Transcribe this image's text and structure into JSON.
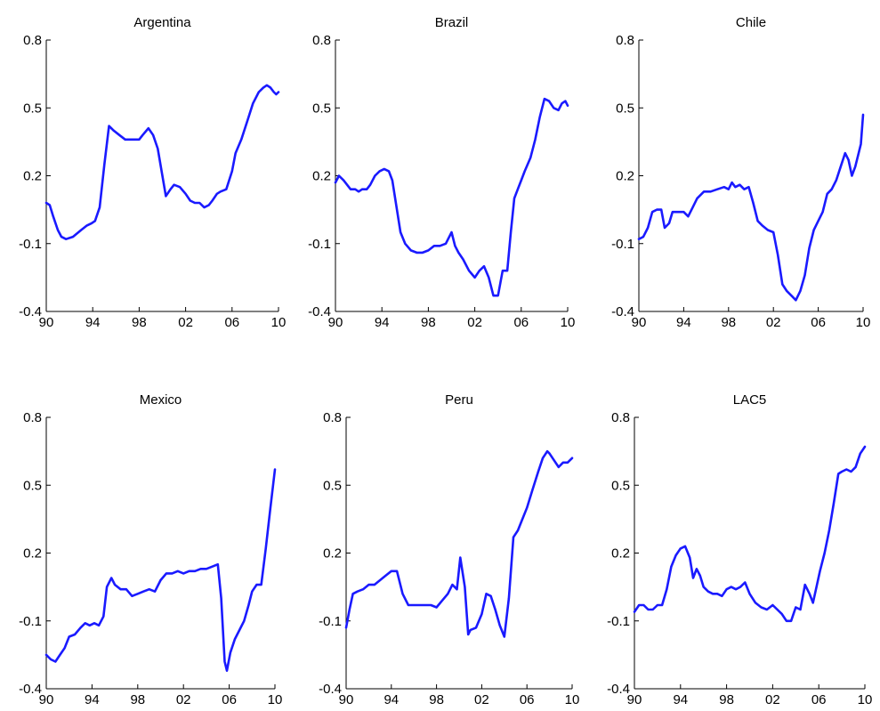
{
  "chart_data": [
    {
      "type": "line",
      "title": "Argentina",
      "xlabel": "",
      "ylabel": "",
      "xlim": [
        1990,
        2010
      ],
      "ylim": [
        -0.4,
        0.8
      ],
      "xticks": [
        1990,
        1994,
        1998,
        2002,
        2006,
        2010
      ],
      "xtick_labels": [
        "90",
        "94",
        "98",
        "02",
        "06",
        "10"
      ],
      "yticks": [
        -0.4,
        -0.1,
        0.2,
        0.5,
        0.8
      ],
      "ytick_labels": [
        "-0.4",
        "-0.1",
        "0.2",
        "0.5",
        "0.8"
      ],
      "series": [
        {
          "color": "#1a1aff",
          "x": [
            1990.0,
            1990.3,
            1990.6,
            1991.0,
            1991.3,
            1991.7,
            1992.3,
            1993.0,
            1993.5,
            1993.9,
            1994.2,
            1994.6,
            1995.0,
            1995.4,
            1995.8,
            1996.3,
            1996.8,
            1997.5,
            1998.0,
            1998.3,
            1998.8,
            1999.2,
            1999.6,
            2000.0,
            2000.3,
            2000.7,
            2001.0,
            2001.5,
            2002.0,
            2002.4,
            2002.8,
            2003.2,
            2003.6,
            2004.0,
            2004.3,
            2004.7,
            2005.0,
            2005.5,
            2006.0,
            2006.3,
            2006.8,
            2007.3,
            2007.8,
            2008.3,
            2008.7,
            2009.0,
            2009.3,
            2009.6,
            2009.8,
            2010.0
          ],
          "y": [
            0.08,
            0.07,
            0.02,
            -0.04,
            -0.07,
            -0.08,
            -0.07,
            -0.04,
            -0.02,
            -0.01,
            0.0,
            0.06,
            0.25,
            0.42,
            0.4,
            0.38,
            0.36,
            0.36,
            0.36,
            0.38,
            0.41,
            0.38,
            0.32,
            0.2,
            0.11,
            0.14,
            0.16,
            0.15,
            0.12,
            0.09,
            0.08,
            0.08,
            0.06,
            0.07,
            0.09,
            0.12,
            0.13,
            0.14,
            0.22,
            0.3,
            0.36,
            0.44,
            0.52,
            0.57,
            0.59,
            0.6,
            0.59,
            0.57,
            0.56,
            0.57
          ]
        }
      ]
    },
    {
      "type": "line",
      "title": "Brazil",
      "xlabel": "",
      "ylabel": "",
      "xlim": [
        1990,
        2010
      ],
      "ylim": [
        -0.4,
        0.8
      ],
      "xticks": [
        1990,
        1994,
        1998,
        2002,
        2006,
        2010
      ],
      "xtick_labels": [
        "90",
        "94",
        "98",
        "02",
        "06",
        "10"
      ],
      "yticks": [
        -0.4,
        -0.1,
        0.2,
        0.5,
        0.8
      ],
      "ytick_labels": [
        "-0.4",
        "-0.1",
        "0.2",
        "0.5",
        "0.8"
      ],
      "series": [
        {
          "color": "#1a1aff",
          "x": [
            1990.0,
            1990.3,
            1990.7,
            1991.0,
            1991.3,
            1991.7,
            1992.0,
            1992.3,
            1992.7,
            1993.0,
            1993.4,
            1993.8,
            1994.2,
            1994.6,
            1994.9,
            1995.2,
            1995.6,
            1996.0,
            1996.5,
            1997.0,
            1997.5,
            1998.0,
            1998.5,
            1999.0,
            1999.5,
            2000.0,
            2000.3,
            2000.6,
            2001.0,
            2001.5,
            2002.0,
            2002.4,
            2002.8,
            2003.2,
            2003.6,
            2004.0,
            2004.4,
            2004.8,
            2005.1,
            2005.4,
            2005.7,
            2006.0,
            2006.3,
            2006.8,
            2007.2,
            2007.6,
            2008.0,
            2008.4,
            2008.8,
            2009.2,
            2009.5,
            2009.8,
            2010.0
          ],
          "y": [
            0.17,
            0.2,
            0.18,
            0.16,
            0.14,
            0.14,
            0.13,
            0.14,
            0.14,
            0.16,
            0.2,
            0.22,
            0.23,
            0.22,
            0.18,
            0.08,
            -0.05,
            -0.1,
            -0.13,
            -0.14,
            -0.14,
            -0.13,
            -0.11,
            -0.11,
            -0.1,
            -0.05,
            -0.11,
            -0.14,
            -0.17,
            -0.22,
            -0.25,
            -0.22,
            -0.2,
            -0.25,
            -0.33,
            -0.33,
            -0.22,
            -0.22,
            -0.05,
            0.1,
            0.14,
            0.18,
            0.22,
            0.28,
            0.36,
            0.46,
            0.54,
            0.53,
            0.5,
            0.49,
            0.52,
            0.53,
            0.51
          ]
        }
      ]
    },
    {
      "type": "line",
      "title": "Chile",
      "xlabel": "",
      "ylabel": "",
      "xlim": [
        1990,
        2010
      ],
      "ylim": [
        -0.4,
        0.8
      ],
      "xticks": [
        1990,
        1994,
        1998,
        2002,
        2006,
        2010
      ],
      "xtick_labels": [
        "90",
        "94",
        "98",
        "02",
        "06",
        "10"
      ],
      "yticks": [
        -0.4,
        -0.1,
        0.2,
        0.5,
        0.8
      ],
      "ytick_labels": [
        "-0.4",
        "-0.1",
        "0.2",
        "0.5",
        "0.8"
      ],
      "series": [
        {
          "color": "#1a1aff",
          "x": [
            1990.0,
            1990.4,
            1990.8,
            1991.2,
            1991.6,
            1992.0,
            1992.3,
            1992.7,
            1993.0,
            1993.5,
            1994.0,
            1994.4,
            1994.8,
            1995.2,
            1995.8,
            1996.4,
            1997.0,
            1997.6,
            1998.0,
            1998.3,
            1998.6,
            1999.0,
            1999.4,
            1999.8,
            2000.2,
            2000.6,
            2001.0,
            2001.5,
            2002.0,
            2002.4,
            2002.8,
            2003.2,
            2003.6,
            2004.0,
            2004.4,
            2004.8,
            2005.2,
            2005.6,
            2006.0,
            2006.4,
            2006.8,
            2007.2,
            2007.6,
            2008.0,
            2008.4,
            2008.7,
            2009.0,
            2009.3,
            2009.6,
            2009.8,
            2010.0
          ],
          "y": [
            -0.08,
            -0.07,
            -0.03,
            0.04,
            0.05,
            0.05,
            -0.03,
            -0.01,
            0.04,
            0.04,
            0.04,
            0.02,
            0.06,
            0.1,
            0.13,
            0.13,
            0.14,
            0.15,
            0.14,
            0.17,
            0.15,
            0.16,
            0.14,
            0.15,
            0.08,
            0.0,
            -0.02,
            -0.04,
            -0.05,
            -0.15,
            -0.28,
            -0.31,
            -0.33,
            -0.35,
            -0.31,
            -0.24,
            -0.12,
            -0.04,
            0.0,
            0.04,
            0.12,
            0.14,
            0.18,
            0.24,
            0.3,
            0.27,
            0.2,
            0.24,
            0.3,
            0.34,
            0.47
          ]
        }
      ]
    },
    {
      "type": "line",
      "title": "Mexico",
      "xlabel": "",
      "ylabel": "",
      "xlim": [
        1990,
        2010
      ],
      "ylim": [
        -0.4,
        0.8
      ],
      "xticks": [
        1990,
        1994,
        1998,
        2002,
        2006,
        2010
      ],
      "xtick_labels": [
        "90",
        "94",
        "98",
        "02",
        "06",
        "10"
      ],
      "yticks": [
        -0.4,
        -0.1,
        0.2,
        0.5,
        0.8
      ],
      "ytick_labels": [
        "-0.4",
        "-0.1",
        "0.2",
        "0.5",
        "0.8"
      ],
      "series": [
        {
          "color": "#1a1aff",
          "x": [
            1990.0,
            1990.4,
            1990.8,
            1991.2,
            1991.6,
            1992.0,
            1992.5,
            1993.0,
            1993.4,
            1993.8,
            1994.2,
            1994.6,
            1995.0,
            1995.3,
            1995.7,
            1996.0,
            1996.5,
            1997.0,
            1997.5,
            1998.0,
            1998.5,
            1999.0,
            1999.5,
            2000.0,
            2000.5,
            2001.0,
            2001.5,
            2002.0,
            2002.5,
            2003.0,
            2003.5,
            2004.0,
            2004.5,
            2005.0,
            2005.3,
            2005.6,
            2005.8,
            2006.1,
            2006.5,
            2006.9,
            2007.3,
            2007.7,
            2008.0,
            2008.4,
            2008.8,
            2009.2,
            2009.6,
            2010.0
          ],
          "y": [
            -0.25,
            -0.27,
            -0.28,
            -0.25,
            -0.22,
            -0.17,
            -0.16,
            -0.13,
            -0.11,
            -0.12,
            -0.11,
            -0.12,
            -0.08,
            0.05,
            0.09,
            0.06,
            0.04,
            0.04,
            0.01,
            0.02,
            0.03,
            0.04,
            0.03,
            0.08,
            0.11,
            0.11,
            0.12,
            0.11,
            0.12,
            0.12,
            0.13,
            0.13,
            0.14,
            0.15,
            0.0,
            -0.28,
            -0.32,
            -0.24,
            -0.18,
            -0.14,
            -0.1,
            -0.03,
            0.03,
            0.06,
            0.06,
            0.22,
            0.4,
            0.57
          ]
        }
      ]
    },
    {
      "type": "line",
      "title": "Peru",
      "xlabel": "",
      "ylabel": "",
      "xlim": [
        1990,
        2010
      ],
      "ylim": [
        -0.4,
        0.8
      ],
      "xticks": [
        1990,
        1994,
        1998,
        2002,
        2006,
        2010
      ],
      "xtick_labels": [
        "90",
        "94",
        "98",
        "02",
        "06",
        "10"
      ],
      "yticks": [
        -0.4,
        -0.1,
        0.2,
        0.5,
        0.8
      ],
      "ytick_labels": [
        "-0.4",
        "-0.1",
        "0.2",
        "0.5",
        "0.8"
      ],
      "series": [
        {
          "color": "#1a1aff",
          "x": [
            1990.0,
            1990.3,
            1990.6,
            1991.0,
            1991.5,
            1992.0,
            1992.5,
            1993.0,
            1993.5,
            1994.0,
            1994.5,
            1995.0,
            1995.5,
            1996.0,
            1996.5,
            1997.0,
            1997.5,
            1998.0,
            1998.5,
            1999.0,
            1999.4,
            1999.8,
            2000.1,
            2000.5,
            2000.8,
            2001.0,
            2001.5,
            2002.0,
            2002.4,
            2002.8,
            2003.2,
            2003.6,
            2004.0,
            2004.4,
            2004.8,
            2005.2,
            2005.6,
            2006.0,
            2006.5,
            2007.0,
            2007.4,
            2007.8,
            2008.0,
            2008.4,
            2008.8,
            2009.2,
            2009.6,
            2010.0
          ],
          "y": [
            -0.13,
            -0.05,
            0.02,
            0.03,
            0.04,
            0.06,
            0.06,
            0.08,
            0.1,
            0.12,
            0.12,
            0.02,
            -0.03,
            -0.03,
            -0.03,
            -0.03,
            -0.03,
            -0.04,
            -0.01,
            0.02,
            0.06,
            0.04,
            0.18,
            0.05,
            -0.16,
            -0.14,
            -0.13,
            -0.07,
            0.02,
            0.01,
            -0.05,
            -0.12,
            -0.17,
            0.0,
            0.27,
            0.3,
            0.35,
            0.4,
            0.48,
            0.56,
            0.62,
            0.65,
            0.64,
            0.61,
            0.58,
            0.6,
            0.6,
            0.62
          ]
        }
      ]
    },
    {
      "type": "line",
      "title": "LAC5",
      "xlabel": "",
      "ylabel": "",
      "xlim": [
        1990,
        2010
      ],
      "ylim": [
        -0.4,
        0.8
      ],
      "xticks": [
        1990,
        1994,
        1998,
        2002,
        2006,
        2010
      ],
      "xtick_labels": [
        "90",
        "94",
        "98",
        "02",
        "06",
        "10"
      ],
      "yticks": [
        -0.4,
        -0.1,
        0.2,
        0.5,
        0.8
      ],
      "ytick_labels": [
        "-0.4",
        "-0.1",
        "0.2",
        "0.5",
        "0.8"
      ],
      "series": [
        {
          "color": "#1a1aff",
          "x": [
            1990.0,
            1990.4,
            1990.8,
            1991.2,
            1991.6,
            1992.0,
            1992.4,
            1992.8,
            1993.2,
            1993.6,
            1994.0,
            1994.4,
            1994.8,
            1995.1,
            1995.4,
            1995.7,
            1996.0,
            1996.4,
            1996.8,
            1997.2,
            1997.6,
            1998.0,
            1998.4,
            1998.8,
            1999.2,
            1999.6,
            2000.0,
            2000.5,
            2001.0,
            2001.5,
            2002.0,
            2002.4,
            2002.8,
            2003.2,
            2003.6,
            2004.0,
            2004.4,
            2004.8,
            2005.2,
            2005.5,
            2005.8,
            2006.1,
            2006.5,
            2006.9,
            2007.3,
            2007.7,
            2008.0,
            2008.4,
            2008.8,
            2009.2,
            2009.6,
            2010.0
          ],
          "y": [
            -0.06,
            -0.03,
            -0.03,
            -0.05,
            -0.05,
            -0.03,
            -0.03,
            0.04,
            0.14,
            0.19,
            0.22,
            0.23,
            0.18,
            0.09,
            0.13,
            0.1,
            0.05,
            0.03,
            0.02,
            0.02,
            0.01,
            0.04,
            0.05,
            0.04,
            0.05,
            0.07,
            0.02,
            -0.02,
            -0.04,
            -0.05,
            -0.03,
            -0.05,
            -0.07,
            -0.1,
            -0.1,
            -0.04,
            -0.05,
            0.06,
            0.02,
            -0.02,
            0.05,
            0.12,
            0.2,
            0.3,
            0.42,
            0.55,
            0.56,
            0.57,
            0.56,
            0.58,
            0.64,
            0.67
          ]
        }
      ]
    }
  ]
}
